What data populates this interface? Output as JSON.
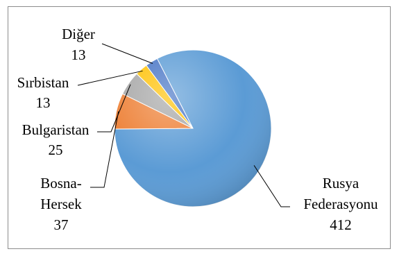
{
  "chart_data": {
    "type": "pie",
    "title": "",
    "slices": [
      {
        "label": "Rusya Federasyonu",
        "value": 412,
        "color": "#5b9bd5"
      },
      {
        "label": "Bosna-Hersek",
        "value": 37,
        "color": "#ed7d31"
      },
      {
        "label": "Bulgaristan",
        "value": 25,
        "color": "#a5a5a5"
      },
      {
        "label": "Sırbistan",
        "value": 13,
        "color": "#ffc000"
      },
      {
        "label": "Diğer",
        "value": 13,
        "color": "#4472c4"
      }
    ],
    "label_lines": [
      [
        "Rusya",
        "Federasyonu",
        "412"
      ],
      [
        "Bosna-",
        "Hersek",
        "37"
      ],
      [
        "Bulgaristan",
        "25"
      ],
      [
        "Sırbistan",
        "13"
      ],
      [
        "Diğer",
        "13"
      ]
    ],
    "legend": "none"
  }
}
